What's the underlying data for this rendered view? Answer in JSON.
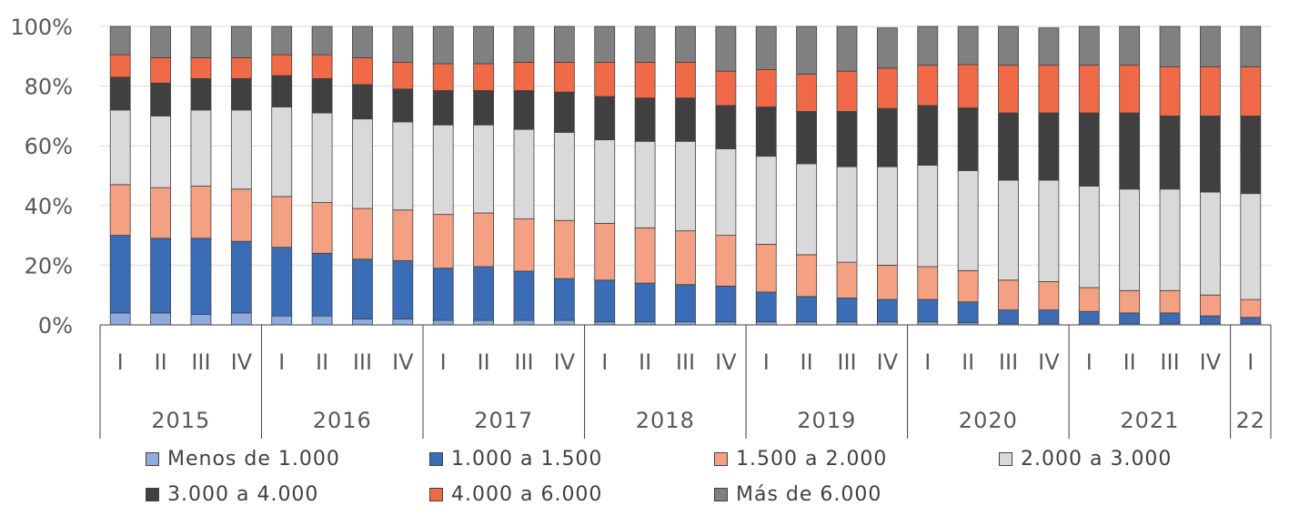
{
  "chart_data": {
    "type": "stacked-bar-100",
    "ylim": [
      0,
      100
    ],
    "yticks": [
      "0%",
      "20%",
      "40%",
      "60%",
      "80%",
      "100%"
    ],
    "quarters": [
      "I",
      "II",
      "III",
      "IV",
      "I",
      "II",
      "III",
      "IV",
      "I",
      "II",
      "III",
      "IV",
      "I",
      "II",
      "III",
      "IV",
      "I",
      "II",
      "III",
      "IV",
      "I",
      "II",
      "III",
      "IV",
      "I",
      "II",
      "III",
      "IV",
      "I"
    ],
    "years": [
      {
        "label": "2015",
        "count": 4
      },
      {
        "label": "2016",
        "count": 4
      },
      {
        "label": "2017",
        "count": 4
      },
      {
        "label": "2018",
        "count": 4
      },
      {
        "label": "2019",
        "count": 4
      },
      {
        "label": "2020",
        "count": 4
      },
      {
        "label": "2021",
        "count": 4
      },
      {
        "label": "22",
        "count": 1
      }
    ],
    "series": [
      {
        "name": "Menos de 1.000",
        "color": "#8FAADC",
        "values": [
          4,
          4,
          3.5,
          4,
          3,
          3,
          2,
          2,
          1.5,
          1.5,
          1.5,
          1.5,
          1,
          1,
          1,
          1,
          1,
          1,
          1,
          1,
          1,
          0.7,
          0.5,
          0.5,
          0.5,
          0.5,
          0.5,
          0.5,
          0.5
        ]
      },
      {
        "name": "1.000 a 1.500",
        "color": "#3A6DB5",
        "values": [
          26,
          25,
          25.5,
          24,
          23,
          21,
          20,
          19.5,
          17.5,
          18,
          16.5,
          14,
          14,
          13,
          12.5,
          12,
          10,
          8.5,
          8,
          7.5,
          7.5,
          7,
          4.5,
          4.5,
          4,
          3.5,
          3.5,
          2.5,
          2
        ]
      },
      {
        "name": "1.500 a 2.000",
        "color": "#F4A082",
        "values": [
          17,
          17,
          17.5,
          17.5,
          17,
          17,
          17,
          17,
          18,
          18,
          17.5,
          19.5,
          19,
          18.5,
          18,
          17,
          16,
          14,
          12,
          11.5,
          11,
          10.5,
          10,
          9.5,
          8,
          7.5,
          7.5,
          7,
          6
        ]
      },
      {
        "name": "2.000 a 3.000",
        "color": "#D9D9D9",
        "values": [
          25,
          24,
          25.5,
          26.5,
          30,
          30,
          30,
          29.5,
          30,
          29.5,
          30,
          29.5,
          28,
          29,
          30,
          29,
          29.5,
          30.5,
          32,
          33,
          34,
          33.5,
          33.5,
          34,
          34,
          34,
          34,
          34.5,
          35.5
        ]
      },
      {
        "name": "3.000 a 4.000",
        "color": "#404040",
        "values": [
          11,
          11,
          10.5,
          10.5,
          10.5,
          11.5,
          11.5,
          11,
          11.5,
          11.5,
          13,
          13.5,
          14.5,
          14.5,
          14.5,
          14.5,
          16.5,
          17.5,
          18.5,
          19.5,
          20,
          21,
          22.5,
          22.5,
          24.5,
          25.5,
          24.5,
          25.5,
          26
        ]
      },
      {
        "name": "4.000 a 6.000",
        "color": "#F06A47",
        "values": [
          7.5,
          8.5,
          7,
          7,
          7,
          8,
          9,
          9,
          9,
          9,
          9.5,
          10,
          11.5,
          12,
          12,
          11.5,
          12.5,
          12.5,
          13.5,
          13.5,
          13.5,
          14.5,
          16,
          16,
          16,
          16,
          16.5,
          16.5,
          16.5
        ]
      },
      {
        "name": "Más de 6.000",
        "color": "#808080",
        "values": [
          9.5,
          10.5,
          10.5,
          10.5,
          9.5,
          9.5,
          10.5,
          12,
          12.5,
          12.5,
          12,
          12,
          12,
          12,
          12,
          15,
          14.5,
          16,
          15,
          13.5,
          13,
          12.8,
          13,
          12.5,
          13,
          13,
          13.5,
          13.5,
          13.5
        ]
      }
    ]
  }
}
